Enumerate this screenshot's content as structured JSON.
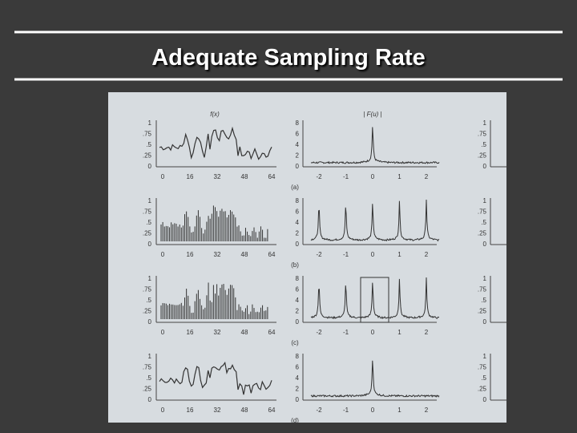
{
  "title": "Adequate Sampling Rate",
  "figure": {
    "left_title": "f(x)",
    "right_title": "| F(u) |",
    "left_y_ticks": [
      "1",
      ".75",
      ".5",
      ".25",
      "0"
    ],
    "left_x_ticks": [
      "0",
      "16",
      "32",
      "48",
      "64"
    ],
    "right_y_ticks": [
      "8",
      "6",
      "4",
      "2",
      "0"
    ],
    "right_x_ticks": [
      "-2",
      "-1",
      "0",
      "1",
      "2"
    ],
    "panels": [
      "(a)",
      "(b)",
      "(c)",
      "(d)"
    ]
  }
}
